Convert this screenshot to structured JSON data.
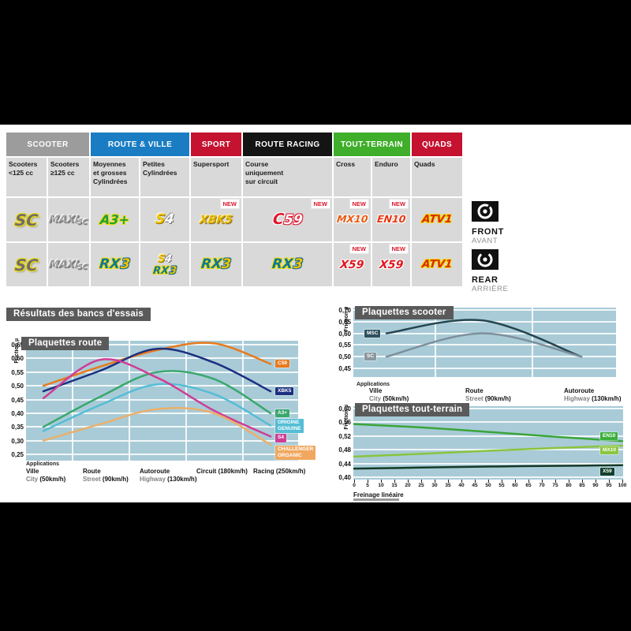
{
  "section_title": "Résultats des bancs d'essais",
  "table": {
    "new_label": "NEW",
    "categories": [
      {
        "label": "SCOOTER",
        "color": "#9c9c9c",
        "span": 2
      },
      {
        "label": "ROUTE & VILLE",
        "color": "#1a7dc4",
        "span": 2
      },
      {
        "label": "SPORT",
        "color": "#c41230",
        "span": 1
      },
      {
        "label": "ROUTE RACING",
        "color": "#141414",
        "span": 1
      },
      {
        "label": "TOUT-TERRAIN",
        "color": "#3fae2a",
        "span": 2
      },
      {
        "label": "QUADS",
        "color": "#c41230",
        "span": 1
      }
    ],
    "subheaders": [
      "Scooters\n<125 cc",
      "Scooters\n≥125 cc",
      "Moyennes\net grosses\nCylindrées",
      "Petites\nCylindrées",
      "Supersport",
      "Course\nuniquement\nsur circuit",
      "Cross",
      "Enduro",
      "Quads"
    ],
    "front_row": [
      {
        "new": false,
        "lines": [
          [
            {
              "t": "SC",
              "s": "sc"
            }
          ]
        ]
      },
      {
        "new": false,
        "lines": [
          [
            {
              "t": "MAXI",
              "s": "maxi"
            },
            {
              "t": "SC",
              "s": "maxisub"
            }
          ]
        ]
      },
      {
        "new": false,
        "lines": [
          [
            {
              "t": "A3+",
              "s": "a3"
            }
          ]
        ]
      },
      {
        "new": false,
        "lines": [
          [
            {
              "t": "S",
              "s": "s4s"
            },
            {
              "t": "4",
              "s": "s4n"
            }
          ]
        ]
      },
      {
        "new": true,
        "lines": [
          [
            {
              "t": "XBK",
              "s": "xbk"
            },
            {
              "t": "5",
              "s": "xbk"
            }
          ]
        ]
      },
      {
        "new": true,
        "lines": [
          [
            {
              "t": "C",
              "s": "c59c"
            },
            {
              "t": "59",
              "s": "c59n"
            }
          ]
        ]
      },
      {
        "new": true,
        "lines": [
          [
            {
              "t": "MX10",
              "s": "mx"
            }
          ]
        ]
      },
      {
        "new": true,
        "lines": [
          [
            {
              "t": "EN10",
              "s": "en"
            }
          ]
        ]
      },
      {
        "new": false,
        "lines": [
          [
            {
              "t": "ATV1",
              "s": "atv"
            }
          ]
        ]
      }
    ],
    "rear_row": [
      {
        "new": false,
        "lines": [
          [
            {
              "t": "SC",
              "s": "sc"
            }
          ]
        ]
      },
      {
        "new": false,
        "lines": [
          [
            {
              "t": "MAXI",
              "s": "maxi"
            },
            {
              "t": "SC",
              "s": "maxisub"
            }
          ]
        ]
      },
      {
        "new": false,
        "lines": [
          [
            {
              "t": "RX",
              "s": "rx"
            },
            {
              "t": "3",
              "s": "rxn"
            }
          ]
        ]
      },
      {
        "new": false,
        "lines": [
          [
            {
              "t": "S",
              "s": "s4s"
            },
            {
              "t": "4",
              "s": "s4n"
            }
          ],
          [
            {
              "t": "RX",
              "s": "rx"
            },
            {
              "t": "3",
              "s": "rxn"
            }
          ]
        ]
      },
      {
        "new": false,
        "lines": [
          [
            {
              "t": "RX",
              "s": "rx"
            },
            {
              "t": "3",
              "s": "rxn"
            }
          ]
        ]
      },
      {
        "new": false,
        "lines": [
          [
            {
              "t": "RX",
              "s": "rx"
            },
            {
              "t": "3",
              "s": "rxn"
            }
          ]
        ]
      },
      {
        "new": true,
        "lines": [
          [
            {
              "t": "X59",
              "s": "x59"
            }
          ]
        ]
      },
      {
        "new": true,
        "lines": [
          [
            {
              "t": "X59",
              "s": "x59"
            }
          ]
        ]
      },
      {
        "new": false,
        "lines": [
          [
            {
              "t": "ATV1",
              "s": "atv"
            }
          ]
        ]
      }
    ]
  },
  "legend": {
    "front": {
      "label": "FRONT",
      "sub": "AVANT"
    },
    "rear": {
      "label": "REAR",
      "sub": "ARRIÈRE"
    }
  },
  "chart_data": [
    {
      "type": "line",
      "title": "Plaquettes route",
      "ylabel": "Friction µ",
      "caption": "Applications",
      "grid": true,
      "legend_position": "right",
      "ylim": [
        0.25,
        0.65
      ],
      "yticks": [
        0.65,
        0.6,
        0.55,
        0.5,
        0.45,
        0.4,
        0.35,
        0.3,
        0.25
      ],
      "categories": [
        {
          "fr": "Ville",
          "en": "City",
          "speed": "(50km/h)"
        },
        {
          "fr": "Route",
          "en": "Street",
          "speed": "(90km/h)"
        },
        {
          "fr": "Autoroute",
          "en": "Highway",
          "speed": "(130km/h)"
        },
        {
          "fr": "Circuit",
          "en": "",
          "speed": "(180km/h)"
        },
        {
          "fr": "Racing",
          "en": "",
          "speed": "(250km/h)"
        }
      ],
      "series": [
        {
          "name": "C59",
          "values": [
            0.5,
            0.57,
            0.63,
            0.655,
            0.58
          ],
          "color": "#e87a1e",
          "badge": [
            "C59"
          ],
          "badge_bg": "#e87a1e"
        },
        {
          "name": "XBK5",
          "values": [
            0.48,
            0.555,
            0.635,
            0.585,
            0.48
          ],
          "color": "#1c2f80",
          "badge": [
            "XBK5"
          ],
          "badge_bg": "#1c2f80"
        },
        {
          "name": "A3+",
          "values": [
            0.35,
            0.46,
            0.55,
            0.525,
            0.4
          ],
          "color": "#3aa76d",
          "badge": [
            "A3+"
          ],
          "badge_bg": "#3aa76d"
        },
        {
          "name": "ORIGINE GENUINE",
          "values": [
            0.335,
            0.43,
            0.505,
            0.47,
            0.355
          ],
          "color": "#55bdd5",
          "badge": [
            "ORIGINE",
            "GENUINE"
          ],
          "badge_bg": "#55bdd5"
        },
        {
          "name": "S4",
          "values": [
            0.455,
            0.595,
            0.53,
            0.41,
            0.315
          ],
          "color": "#cf3d96",
          "badge": [
            "S4"
          ],
          "badge_bg": "#cf3d96"
        },
        {
          "name": "CHALLENGER ORGANIC",
          "values": [
            0.3,
            0.36,
            0.415,
            0.4,
            0.285
          ],
          "color": "#eab06b",
          "badge": [
            "CHALLENGER",
            "ORGANIC"
          ],
          "badge_bg": "#f0a860"
        }
      ]
    },
    {
      "type": "line",
      "title": "Plaquettes scooter",
      "ylabel": "Friction µ",
      "caption": "Applications",
      "grid": true,
      "legend_position": "left",
      "ylim": [
        0.45,
        0.7
      ],
      "yticks": [
        0.7,
        0.65,
        0.6,
        0.55,
        0.5,
        0.45
      ],
      "categories": [
        {
          "fr": "Ville",
          "en": "City",
          "speed": "(50km/h)"
        },
        {
          "fr": "Route",
          "en": "Street",
          "speed": "(90km/h)"
        },
        {
          "fr": "Autoroute",
          "en": "Highway",
          "speed": "(130km/h)"
        }
      ],
      "series": [
        {
          "name": "MSC",
          "values": [
            0.6,
            0.655,
            0.5
          ],
          "color": "#24454f",
          "badge": [
            "MSC"
          ],
          "badge_bg": "#2f4f5f"
        },
        {
          "name": "SC",
          "values": [
            0.5,
            0.6,
            0.5
          ],
          "color": "#7d909b",
          "badge": [
            "SC"
          ],
          "badge_bg": "#8a979e"
        }
      ]
    },
    {
      "type": "line",
      "title": "Plaquettes tout-terrain",
      "ylabel": "Friction µ",
      "xlabel": "Freinage linéaire",
      "grid": true,
      "legend_position": "right",
      "ylim": [
        0.4,
        0.6
      ],
      "yticks": [
        0.6,
        0.56,
        0.52,
        0.48,
        0.44,
        0.4
      ],
      "xticks": [
        0,
        5,
        10,
        15,
        20,
        25,
        30,
        35,
        40,
        45,
        50,
        55,
        60,
        65,
        70,
        75,
        80,
        85,
        90,
        95,
        100
      ],
      "series": [
        {
          "name": "EN10",
          "x": [
            0,
            25,
            50,
            75,
            100
          ],
          "values": [
            0.555,
            0.545,
            0.532,
            0.518,
            0.505
          ],
          "color": "#3aa53a",
          "badge": [
            "EN10"
          ],
          "badge_bg": "#3daf3d"
        },
        {
          "name": "MX10",
          "x": [
            0,
            25,
            50,
            75,
            100
          ],
          "values": [
            0.46,
            0.468,
            0.477,
            0.485,
            0.492
          ],
          "color": "#8ac43f",
          "badge": [
            "MX10"
          ],
          "badge_bg": "#8dc63f"
        },
        {
          "name": "X59",
          "x": [
            0,
            25,
            50,
            75,
            100
          ],
          "values": [
            0.425,
            0.428,
            0.431,
            0.433,
            0.435
          ],
          "color": "#143a26",
          "badge": [
            "X59"
          ],
          "badge_bg": "#12412b"
        }
      ]
    }
  ]
}
